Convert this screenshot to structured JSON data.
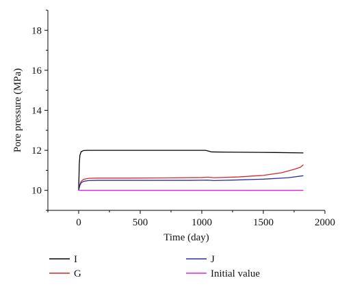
{
  "chart_data": {
    "type": "line",
    "xlabel": "Time (day)",
    "ylabel": "Pore pressure (MPa)",
    "xlim": [
      -250,
      2000
    ],
    "ylim": [
      9,
      19
    ],
    "xticks": [
      0,
      500,
      1000,
      1500,
      2000
    ],
    "yticks": [
      10,
      12,
      14,
      16,
      18
    ],
    "grid": false,
    "legend_position": "bottom",
    "series": [
      {
        "name": "I",
        "color": "#000000",
        "points": [
          [
            0,
            10.0
          ],
          [
            5,
            11.3
          ],
          [
            10,
            11.75
          ],
          [
            20,
            11.93
          ],
          [
            40,
            11.99
          ],
          [
            80,
            12.0
          ],
          [
            300,
            12.0
          ],
          [
            600,
            12.0
          ],
          [
            900,
            12.0
          ],
          [
            1030,
            12.0
          ],
          [
            1050,
            11.97
          ],
          [
            1080,
            11.92
          ],
          [
            1200,
            11.91
          ],
          [
            1400,
            11.9
          ],
          [
            1600,
            11.89
          ],
          [
            1825,
            11.87
          ]
        ]
      },
      {
        "name": "G",
        "color": "#d62728",
        "points": [
          [
            0,
            10.0
          ],
          [
            10,
            10.3
          ],
          [
            20,
            10.45
          ],
          [
            40,
            10.55
          ],
          [
            80,
            10.6
          ],
          [
            150,
            10.61
          ],
          [
            400,
            10.61
          ],
          [
            700,
            10.62
          ],
          [
            1000,
            10.64
          ],
          [
            1050,
            10.66
          ],
          [
            1100,
            10.63
          ],
          [
            1300,
            10.67
          ],
          [
            1500,
            10.75
          ],
          [
            1650,
            10.88
          ],
          [
            1750,
            11.05
          ],
          [
            1800,
            11.15
          ],
          [
            1825,
            11.28
          ]
        ]
      },
      {
        "name": "J",
        "color": "#2a2aa6",
        "points": [
          [
            0,
            10.0
          ],
          [
            10,
            10.25
          ],
          [
            20,
            10.38
          ],
          [
            40,
            10.45
          ],
          [
            80,
            10.49
          ],
          [
            150,
            10.5
          ],
          [
            500,
            10.5
          ],
          [
            900,
            10.5
          ],
          [
            1050,
            10.51
          ],
          [
            1100,
            10.49
          ],
          [
            1300,
            10.52
          ],
          [
            1500,
            10.56
          ],
          [
            1700,
            10.63
          ],
          [
            1825,
            10.73
          ]
        ]
      },
      {
        "name": "Initial value",
        "color": "#e020e0",
        "points": [
          [
            0,
            10.0
          ],
          [
            1825,
            10.0
          ]
        ]
      }
    ]
  }
}
